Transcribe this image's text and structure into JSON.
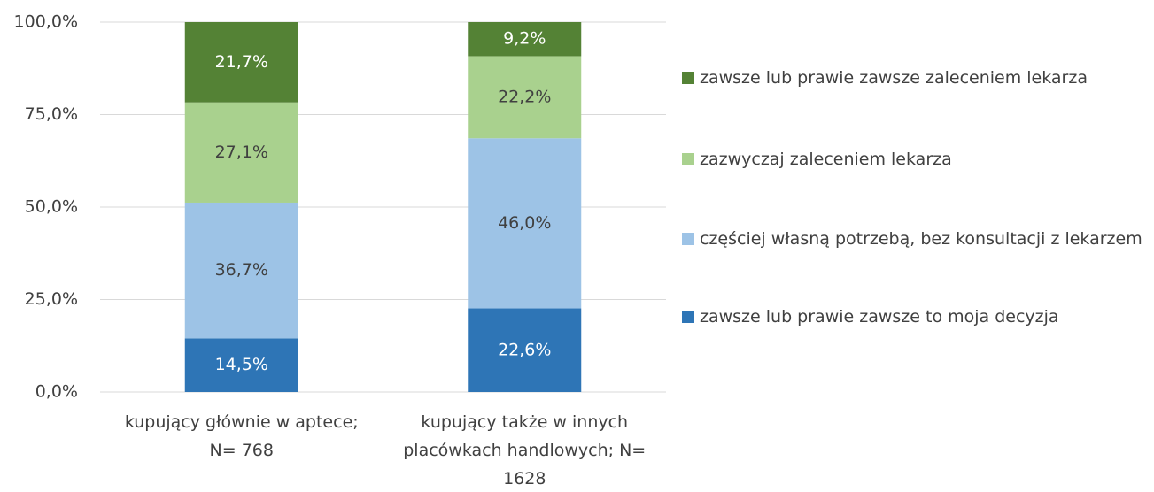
{
  "chart_data": {
    "type": "stacked_bar",
    "categories": [
      "kupujący głównie w aptece; N= 768",
      "kupujący także w innych placówkach handlowych; N= 1628"
    ],
    "series": [
      {
        "name": "zawsze lub prawie zawsze to moja decyzja",
        "color": "#2e75b6",
        "label_color": "#ffffff",
        "values": [
          14.5,
          22.6
        ],
        "value_labels": [
          "14,5%",
          "22,6%"
        ]
      },
      {
        "name": "częściej własną potrzebą, bez konsultacji z lekarzem",
        "color": "#9dc3e6",
        "label_color": "#404040",
        "values": [
          36.7,
          46.0
        ],
        "value_labels": [
          "36,7%",
          "46,0%"
        ]
      },
      {
        "name": "zazwyczaj zaleceniem lekarza",
        "color": "#a9d18e",
        "label_color": "#404040",
        "values": [
          27.1,
          22.2
        ],
        "value_labels": [
          "27,1%",
          "22,2%"
        ]
      },
      {
        "name": "zawsze lub prawie zawsze zaleceniem lekarza",
        "color": "#548235",
        "label_color": "#ffffff",
        "values": [
          21.7,
          9.2
        ],
        "value_labels": [
          "21,7%",
          "9,2%"
        ]
      }
    ],
    "ylim": [
      0,
      100
    ],
    "yticks": [
      {
        "value": 0,
        "label": "0,0%"
      },
      {
        "value": 25,
        "label": "25,0%"
      },
      {
        "value": 50,
        "label": "50,0%"
      },
      {
        "value": 75,
        "label": "75,0%"
      },
      {
        "value": 100,
        "label": "100,0%"
      }
    ],
    "grid": true,
    "legend": "right"
  }
}
